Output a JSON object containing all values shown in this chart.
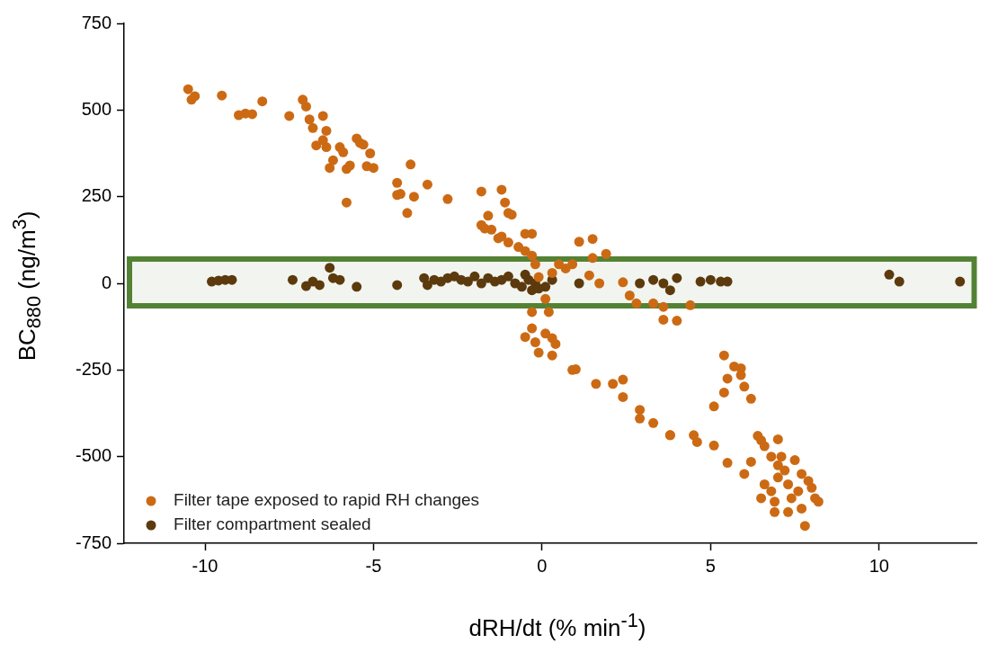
{
  "chart_data": {
    "type": "scatter",
    "xlabel": "dRH/dt (% min$^{-1}$)",
    "ylabel": "BC$_{880}$ (ng/m$^{3}$)",
    "xlim": [
      -12.4,
      12.9
    ],
    "xticks": [
      -10,
      -5,
      0,
      5,
      10
    ],
    "ylim": [
      -750,
      750
    ],
    "yticks": [
      -750,
      -500,
      -250,
      0,
      250,
      500,
      750
    ],
    "legend": "bottom left",
    "marker": "circle",
    "bands": [
      {
        "axis": "y",
        "from": -65,
        "to": 70,
        "color": "#548235"
      }
    ],
    "series": [
      {
        "name": "Filter tape exposed to rapid RH changes",
        "color": "#cc6a14",
        "x": [
          -10.5,
          -10.4,
          -10.3,
          -9.5,
          -9.0,
          -8.8,
          -8.6,
          -8.3,
          -7.5,
          -7.1,
          -7.0,
          -6.9,
          -6.8,
          -6.7,
          -6.5,
          -6.5,
          -6.4,
          -6.4,
          -6.3,
          -6.2,
          -6.0,
          -5.9,
          -5.8,
          -5.8,
          -5.7,
          -5.5,
          -5.4,
          -5.3,
          -5.2,
          -5.1,
          -5.0,
          -4.3,
          -4.3,
          -4.2,
          -4.0,
          -3.8,
          -3.9,
          -3.4,
          -2.8,
          -1.8,
          -1.8,
          -1.7,
          -1.6,
          -1.2,
          -1.1,
          -1.0,
          -0.9,
          -1.5,
          -1.3,
          -1.2,
          -1.0,
          -0.7,
          -0.5,
          -0.3,
          -0.5,
          -0.3,
          -0.2,
          -0.1,
          0.1,
          0.2,
          0.1,
          0.3,
          0.4,
          0.3,
          -0.1,
          -0.3,
          -0.5,
          -0.2,
          -0.3,
          0.9,
          1.0,
          1.6,
          2.1,
          2.4,
          2.9,
          2.9,
          3.3,
          3.8,
          3.8,
          4.5,
          4.6,
          5.1,
          5.5,
          6.0,
          6.2,
          6.4,
          6.5,
          6.8,
          7.0,
          6.8,
          6.9,
          7.0,
          7.2,
          7.3,
          7.4,
          7.6,
          7.7,
          7.8,
          7.9,
          8.0,
          8.1,
          7.5,
          7.1,
          6.6,
          6.5,
          6.9,
          7.3,
          7.7,
          8.2,
          7.0,
          6.6,
          2.4,
          5.4,
          5.5,
          5.7,
          5.9,
          5.1,
          5.4,
          5.9,
          6.0,
          6.2,
          1.9,
          1.5,
          1.4,
          1.7,
          2.4,
          2.6,
          2.8,
          3.3,
          3.6,
          3.6,
          4.0,
          4.4,
          0.9,
          0.7,
          0.5,
          0.3,
          1.1,
          1.5
        ],
        "values": [
          560,
          530,
          540,
          542,
          485,
          490,
          488,
          525,
          483,
          530,
          510,
          473,
          448,
          398,
          413,
          483,
          440,
          393,
          333,
          355,
          393,
          378,
          330,
          233,
          340,
          418,
          405,
          400,
          338,
          375,
          333,
          290,
          255,
          258,
          203,
          250,
          343,
          285,
          243,
          265,
          168,
          158,
          195,
          270,
          233,
          203,
          198,
          155,
          130,
          135,
          118,
          105,
          93,
          80,
          143,
          143,
          55,
          18,
          -45,
          -83,
          -145,
          -158,
          -175,
          -208,
          -200,
          -130,
          -155,
          -170,
          -83,
          -250,
          -248,
          -290,
          -290,
          -328,
          -365,
          -390,
          -403,
          -438,
          -438,
          -438,
          -458,
          -468,
          -518,
          -550,
          -515,
          -440,
          -453,
          -500,
          -525,
          -600,
          -630,
          -560,
          -540,
          -580,
          -620,
          -600,
          -650,
          -700,
          -570,
          -590,
          -620,
          -510,
          -500,
          -580,
          -620,
          -660,
          -660,
          -550,
          -630,
          -450,
          -470,
          -278,
          -208,
          -275,
          -240,
          -245,
          -355,
          -315,
          -265,
          -298,
          -333,
          85,
          73,
          23,
          0,
          3,
          -35,
          -58,
          -58,
          -68,
          -105,
          -108,
          -63,
          55,
          43,
          55,
          30,
          120,
          128
        ]
      },
      {
        "name": "Filter compartment sealed",
        "color": "#5c3a0e",
        "x": [
          -9.8,
          -9.6,
          -9.4,
          -9.2,
          -7.4,
          -7.0,
          -6.8,
          -6.6,
          -6.3,
          -6.2,
          -6.0,
          -5.5,
          -4.3,
          -3.5,
          -3.4,
          -3.2,
          -3.0,
          -2.8,
          -2.6,
          -2.4,
          -2.2,
          -2.0,
          -1.8,
          -1.6,
          -1.4,
          -1.2,
          -1.0,
          -0.8,
          -0.6,
          -0.5,
          -0.4,
          -0.3,
          -0.2,
          -0.1,
          0.0,
          0.1,
          0.3,
          1.1,
          2.9,
          3.3,
          3.6,
          3.8,
          4.0,
          4.7,
          5.0,
          5.3,
          5.5,
          null,
          10.3,
          10.6,
          12.4
        ],
        "values": [
          5,
          8,
          10,
          10,
          10,
          -8,
          5,
          -5,
          45,
          15,
          10,
          -10,
          -5,
          15,
          -5,
          10,
          5,
          15,
          20,
          10,
          5,
          20,
          0,
          15,
          5,
          10,
          20,
          0,
          -10,
          25,
          10,
          -20,
          0,
          -15,
          null,
          -10,
          10,
          0,
          0,
          10,
          0,
          -20,
          15,
          5,
          10,
          5,
          5,
          null,
          25,
          5,
          5
        ]
      }
    ]
  }
}
